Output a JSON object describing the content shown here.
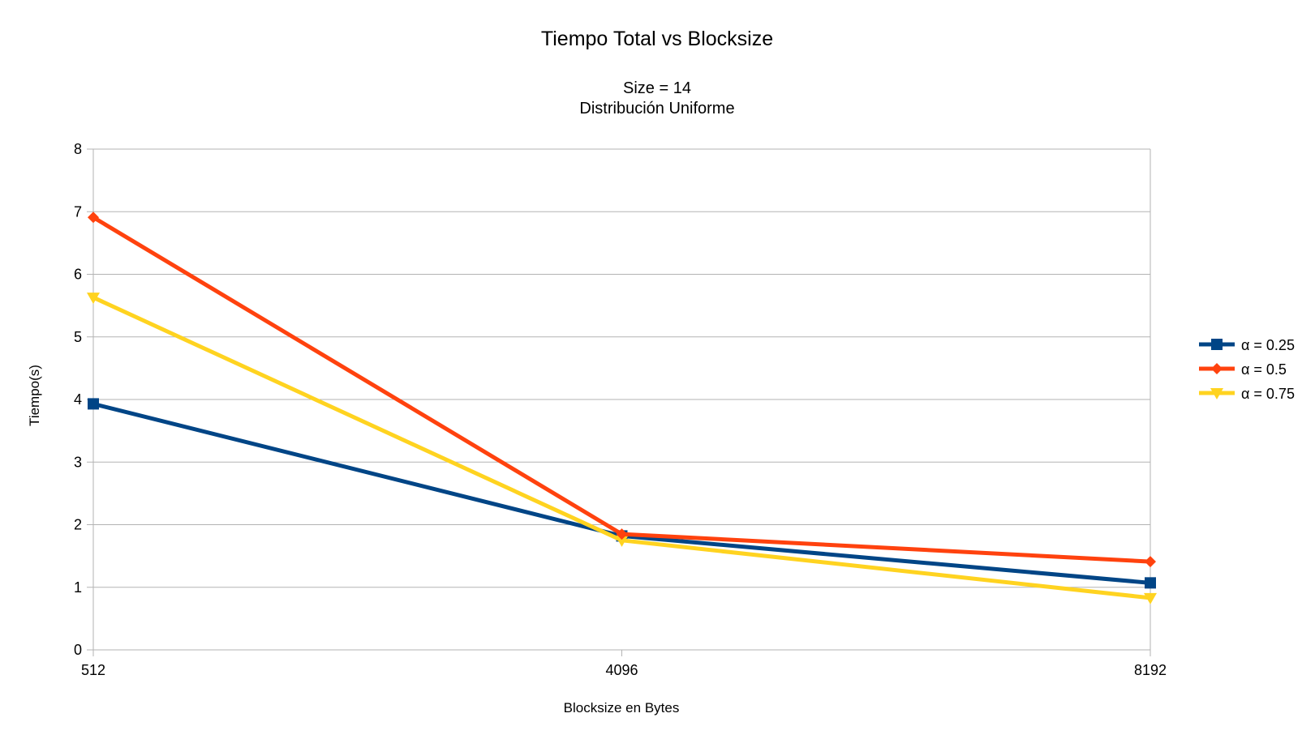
{
  "chart_data": {
    "type": "line",
    "title": "Tiempo Total vs Blocksize",
    "subtitle_lines": [
      "Size = 14",
      "Distribución Uniforme"
    ],
    "xlabel": "Blocksize en Bytes",
    "ylabel": "Tiempo(s)",
    "categories": [
      "512",
      "4096",
      "8192"
    ],
    "ylim": [
      0,
      8
    ],
    "yticks": [
      "0",
      "1",
      "2",
      "3",
      "4",
      "5",
      "6",
      "7",
      "8"
    ],
    "grid": "horizontal",
    "legend_position": "right",
    "series": [
      {
        "name": "α = 0.25",
        "values": [
          3.93,
          1.82,
          1.07
        ],
        "color": "#004586",
        "marker": "square"
      },
      {
        "name": "α = 0.5",
        "values": [
          6.91,
          1.85,
          1.41
        ],
        "color": "#ff420e",
        "marker": "diamond"
      },
      {
        "name": "α = 0.75",
        "values": [
          5.63,
          1.75,
          0.83
        ],
        "color": "#ffd320",
        "marker": "triangle-down"
      }
    ]
  }
}
